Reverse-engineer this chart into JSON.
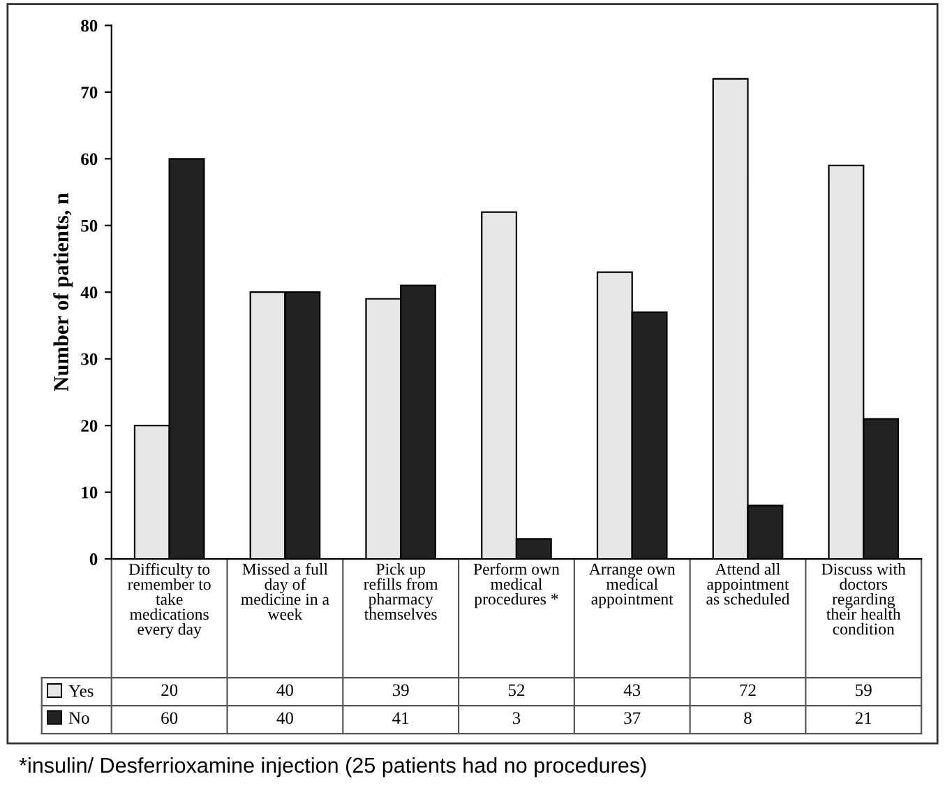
{
  "chart_data": {
    "type": "bar",
    "ylabel": "Number of patients, n",
    "categories": [
      "Difficulty to remember to take medications every day",
      "Missed a full day of medicine in a week",
      "Pick up refills from pharmacy themselves",
      "Perform own medical procedures *",
      "Arrange own medical appointment",
      "Attend all appointment as scheduled",
      "Discuss with doctors regarding their health condition"
    ],
    "series": [
      {
        "name": "Yes",
        "color": "#e6e6e6",
        "values": [
          20,
          40,
          39,
          52,
          43,
          72,
          59
        ]
      },
      {
        "name": "No",
        "color": "#222222",
        "values": [
          60,
          40,
          41,
          3,
          37,
          8,
          21
        ]
      }
    ],
    "ylim": [
      0,
      80
    ],
    "yticks": [
      0,
      10,
      20,
      30,
      40,
      50,
      60,
      70,
      80
    ],
    "data_labels": true,
    "legend": "bottom",
    "grid": false,
    "annotations": [
      "*insulin/ Desferrioxamine injection (25 patients had no procedures)"
    ]
  }
}
